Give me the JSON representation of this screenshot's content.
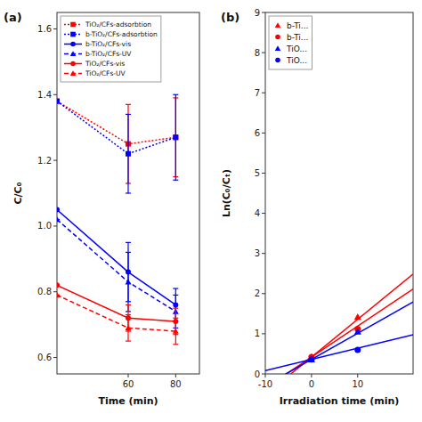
{
  "chart_data": [
    {
      "type": "line",
      "xlabel": "Time (min)",
      "ylabel": "C/C₀",
      "annotations": [
        "(a)"
      ],
      "xlim": [
        30,
        90
      ],
      "ylim": [
        0.55,
        1.65
      ],
      "xticks": [
        60,
        80
      ],
      "yticks": [
        0.6,
        0.8,
        {
          "value": 1.0,
          "label": "1.0"
        },
        1.2,
        1.4,
        1.6
      ],
      "grid": false,
      "legend": "upper left",
      "series": [
        {
          "name": "TiO₂/CFs-adsorbtion",
          "color": "#FF0000",
          "line_style": "dotted",
          "marker": "square",
          "x": [
            30,
            60,
            80
          ],
          "values": [
            1.38,
            1.25,
            1.27
          ],
          "errors": [
            0.0,
            0.12,
            0.12
          ]
        },
        {
          "name": "b-TiO₂/CFs-adsorbtion",
          "color": "#0000FF",
          "line_style": "dotted",
          "marker": "square",
          "x": [
            30,
            60,
            80
          ],
          "values": [
            1.38,
            1.22,
            1.27
          ],
          "errors": [
            0.0,
            0.12,
            0.13
          ]
        },
        {
          "name": "b-TiO₂/CFs-vis",
          "color": "#0000FF",
          "line_style": "solid",
          "marker": "circle",
          "x": [
            30,
            60,
            80
          ],
          "values": [
            1.05,
            0.86,
            0.76
          ],
          "errors": [
            0.0,
            0.09,
            0.05
          ]
        },
        {
          "name": "b-TiO₂/CFs-UV",
          "color": "#0000FF",
          "line_style": "dashed",
          "marker": "triangle",
          "x": [
            30,
            60,
            80
          ],
          "values": [
            1.02,
            0.83,
            0.74
          ],
          "errors": [
            0.0,
            0.09,
            0.05
          ]
        },
        {
          "name": "TiO₂/CFs-vis",
          "color": "#FF0000",
          "line_style": "solid",
          "marker": "circle",
          "x": [
            30,
            60,
            80
          ],
          "values": [
            0.82,
            0.72,
            0.71
          ],
          "errors": [
            0.0,
            0.04,
            0.04
          ]
        },
        {
          "name": "TiO₂/CFs-UV",
          "color": "#FF0000",
          "line_style": "dashed",
          "marker": "triangle",
          "x": [
            30,
            60,
            80
          ],
          "values": [
            0.79,
            0.69,
            0.68
          ],
          "errors": [
            0.0,
            0.04,
            0.04
          ]
        }
      ]
    },
    {
      "type": "scatter",
      "xlabel": "Irradiation time (min)",
      "ylabel": "Ln(C₀/Cₜ)",
      "annotations": [
        "(b)"
      ],
      "xlim": [
        -10,
        22
      ],
      "ylim": [
        0,
        9
      ],
      "xticks": [
        -10,
        0,
        10
      ],
      "yticks": [
        0,
        1,
        2,
        3,
        4,
        5,
        6,
        7,
        8,
        9
      ],
      "grid": false,
      "legend": "upper left",
      "series": [
        {
          "name": "b-Ti...",
          "color": "#FF0000",
          "marker": "triangle",
          "x": [
            0,
            10
          ],
          "values": [
            0.42,
            1.42
          ],
          "slope": 0.094,
          "intercept": 0.42
        },
        {
          "name": "b-Ti...",
          "color": "#FF0000",
          "marker": "circle",
          "x": [
            0,
            10
          ],
          "values": [
            0.42,
            1.12
          ],
          "slope": 0.077,
          "intercept": 0.42
        },
        {
          "name": "TiO...",
          "color": "#0000FF",
          "marker": "triangle",
          "x": [
            0,
            10
          ],
          "values": [
            0.36,
            1.05
          ],
          "slope": 0.065,
          "intercept": 0.36
        },
        {
          "name": "TiO...",
          "color": "#0000FF",
          "marker": "circle",
          "x": [
            0,
            10
          ],
          "values": [
            0.36,
            0.6
          ],
          "slope": 0.028,
          "intercept": 0.36
        }
      ]
    }
  ]
}
